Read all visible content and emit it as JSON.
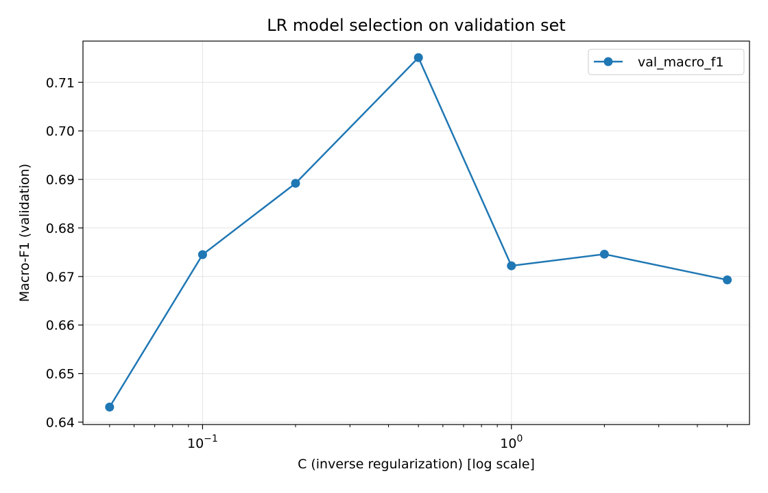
{
  "chart_data": {
    "type": "line",
    "title": "LR model selection on validation set",
    "xlabel": "C (inverse regularization) [log scale]",
    "ylabel": "Macro-F1 (validation)",
    "x_scale": "log",
    "xlim": [
      0.041,
      5.9
    ],
    "ylim": [
      0.6395,
      0.7185
    ],
    "x_ticks": [
      {
        "value": 0.1,
        "base": "10",
        "exp": "−1"
      },
      {
        "value": 1,
        "base": "10",
        "exp": "0"
      }
    ],
    "y_ticks": [
      {
        "value": 0.64,
        "label": "0.64"
      },
      {
        "value": 0.65,
        "label": "0.65"
      },
      {
        "value": 0.66,
        "label": "0.66"
      },
      {
        "value": 0.67,
        "label": "0.67"
      },
      {
        "value": 0.68,
        "label": "0.68"
      },
      {
        "value": 0.69,
        "label": "0.69"
      },
      {
        "value": 0.7,
        "label": "0.70"
      },
      {
        "value": 0.71,
        "label": "0.71"
      }
    ],
    "grid": true,
    "legend_position": "top-right",
    "series": [
      {
        "name": "val_macro_f1",
        "color": "#1f77b4",
        "marker": "circle",
        "x": [
          0.05,
          0.1,
          0.2,
          0.5,
          1,
          2,
          5
        ],
        "y": [
          0.6431,
          0.6745,
          0.6892,
          0.7151,
          0.6722,
          0.6746,
          0.6693
        ]
      }
    ]
  }
}
